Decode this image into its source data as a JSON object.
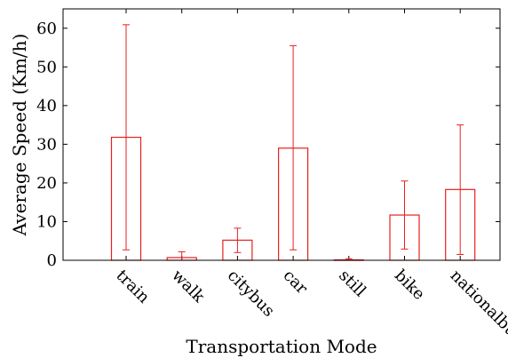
{
  "chart_data": {
    "type": "bar",
    "xlabel": "Transportation Mode",
    "ylabel": "Average Speed (Km/h)",
    "ylim": [
      0,
      65
    ],
    "yticks": [
      0,
      10,
      20,
      30,
      40,
      50,
      60
    ],
    "grid": false,
    "bar_color": "#e8201f",
    "categories": [
      "train",
      "walk",
      "citybus",
      "car",
      "still",
      "bike",
      "nationalbus"
    ],
    "values": [
      31.8,
      0.7,
      5.2,
      29.0,
      0.1,
      11.7,
      18.3
    ],
    "error_low": [
      2.7,
      0.0,
      2.0,
      2.7,
      0.0,
      2.9,
      1.5
    ],
    "error_high": [
      60.9,
      2.2,
      8.3,
      55.5,
      0.4,
      20.5,
      35.0
    ]
  }
}
